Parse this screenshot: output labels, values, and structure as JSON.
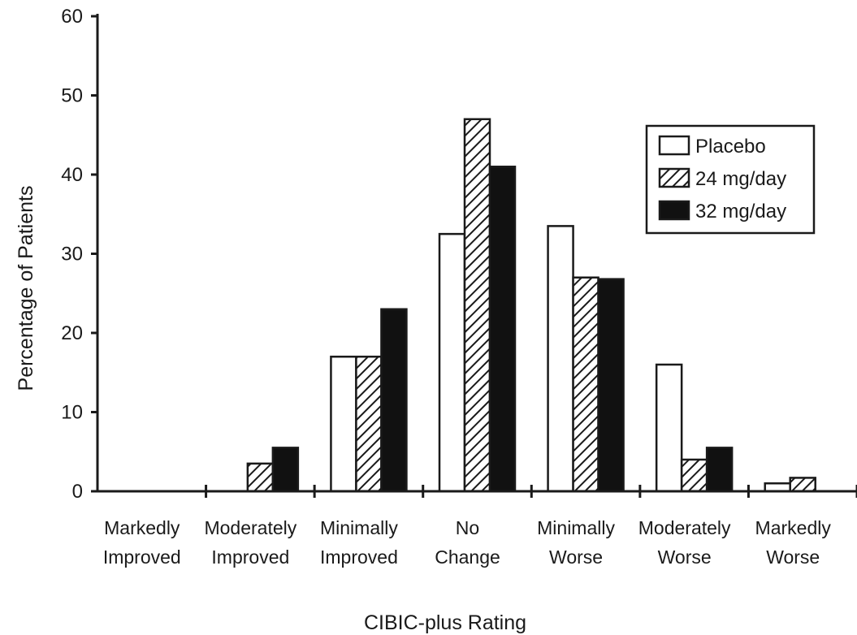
{
  "chart_data": {
    "type": "bar",
    "categories": [
      [
        "Markedly",
        "Improved"
      ],
      [
        "Moderately",
        "Improved"
      ],
      [
        "Minimally",
        "Improved"
      ],
      [
        "No",
        "Change"
      ],
      [
        "Minimally",
        "Worse"
      ],
      [
        "Moderately",
        "Worse"
      ],
      [
        "Markedly",
        "Worse"
      ]
    ],
    "series": [
      {
        "name": "Placebo",
        "pattern": "empty",
        "values": [
          0,
          0,
          17,
          32.5,
          33.5,
          16,
          1
        ]
      },
      {
        "name": "24 mg/day",
        "pattern": "hatched",
        "values": [
          0,
          3.5,
          17,
          47,
          27,
          4,
          1.7
        ]
      },
      {
        "name": "32 mg/day",
        "pattern": "solid",
        "values": [
          0,
          5.5,
          23,
          41,
          26.8,
          5.5,
          0
        ]
      }
    ],
    "xlabel": "CIBIC-plus Rating",
    "ylabel": "Percentage of Patients",
    "ylim": [
      0,
      60
    ],
    "yticks": [
      0,
      10,
      20,
      30,
      40,
      50,
      60
    ],
    "grid": false,
    "legend_position": "top-right",
    "colors": {
      "stroke": "#1a1a1a",
      "empty": "#ffffff",
      "solid": "#111111"
    }
  }
}
